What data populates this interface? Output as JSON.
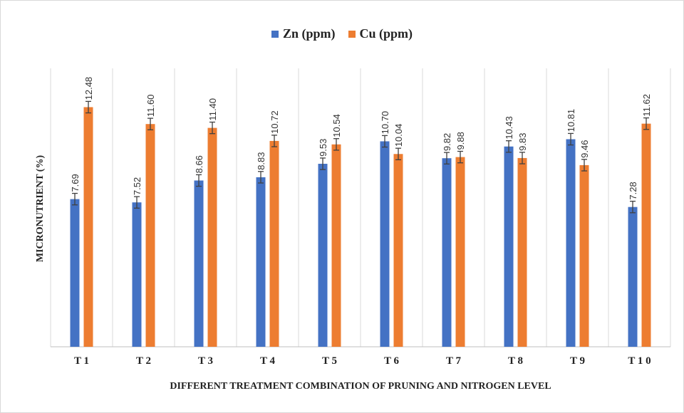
{
  "chart_data": {
    "type": "bar",
    "categories": [
      "T 1",
      "T 2",
      "T 3",
      "T 4",
      "T 5",
      "T 6",
      "T 7",
      "T 8",
      "T 9",
      "T 1 0"
    ],
    "series": [
      {
        "name": "Zn (ppm)",
        "color": "#4472c4",
        "values": [
          7.69,
          7.52,
          8.66,
          8.83,
          9.53,
          10.7,
          9.82,
          10.43,
          10.81,
          7.28
        ],
        "labels": [
          "7.69",
          "7.52",
          "8.66",
          "8.83",
          "9.53",
          "10.70",
          "9.82",
          "10.43",
          "10.81",
          "7.28"
        ]
      },
      {
        "name": "Cu (ppm)",
        "color": "#ed7d31",
        "values": [
          12.48,
          11.6,
          11.4,
          10.72,
          10.54,
          10.04,
          9.88,
          9.83,
          9.46,
          11.62
        ],
        "labels": [
          "12.48",
          "11.60",
          "11.40",
          "10.72",
          "10.54",
          "10.04",
          "9.88",
          "9.83",
          "9.46",
          "11.62"
        ]
      }
    ],
    "error_bar": 0.3,
    "ylim": [
      0,
      14.5
    ],
    "ylabel": "MICRONUTRIENT (%)",
    "xlabel": "DIFFERENT TREATMENT COMBINATION OF PRUNING AND NITROGEN LEVEL",
    "grid": "vertical category separators",
    "legend_position": "top-center"
  }
}
